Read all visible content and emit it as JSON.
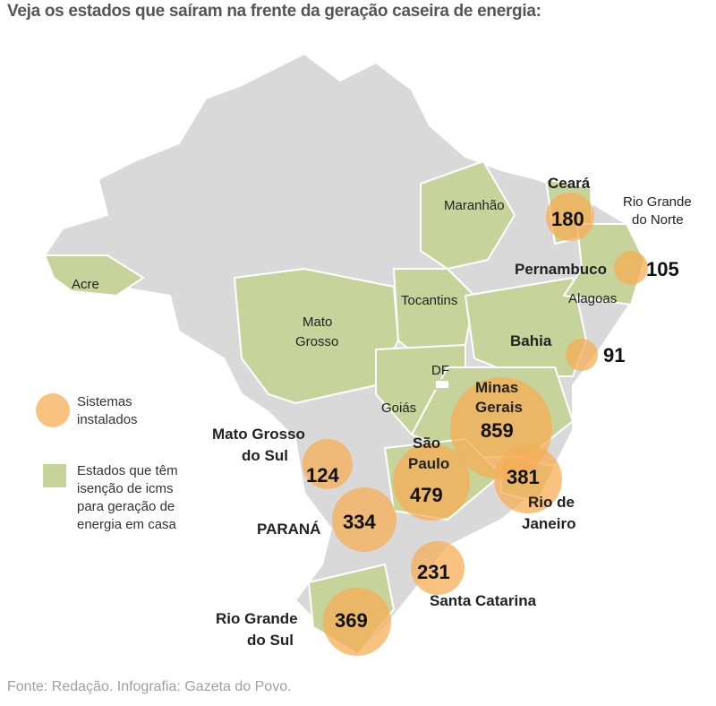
{
  "title": "Veja os estados que saíram na frente da geração caseira de energia:",
  "source": "Fonte: Redação. Infografia: Gazeta do Povo.",
  "colors": {
    "non_exempt_state": "#d9d9d9",
    "exempt_state": "#c6d49c",
    "bubble": "#f5ad55",
    "border": "#ffffff"
  },
  "legend": {
    "bubble_label": [
      "Sistemas",
      "instalados"
    ],
    "exempt_label": [
      "Estados que têm",
      "isenção de icms",
      "para geração de",
      "energia em casa"
    ]
  },
  "exempt_states": [
    "Acre",
    "Mato Grosso",
    "Maranhão",
    "Tocantins",
    "Goiás",
    "DF",
    "Bahia",
    "Minas Gerais",
    "São Paulo",
    "Rio de Janeiro",
    "Ceará",
    "Rio Grande do Norte",
    "Pernambuco",
    "Alagoas",
    "Rio Grande do Sul"
  ],
  "labels": {
    "acre": "Acre",
    "mato_grosso": [
      "Mato",
      "Grosso"
    ],
    "maranhao": "Maranhão",
    "tocantins": "Tocantins",
    "goias": "Goiás",
    "df": "DF",
    "alagoas": "Alagoas",
    "rgn": [
      "Rio Grande",
      "do Norte"
    ]
  },
  "installed_systems": [
    {
      "state": "Ceará",
      "label": [
        "Ceará"
      ],
      "value": "180"
    },
    {
      "state": "Pernambuco",
      "label": [
        "Pernambuco"
      ],
      "value": "105"
    },
    {
      "state": "Bahia",
      "label": [
        "Bahia"
      ],
      "value": "91"
    },
    {
      "state": "Minas Gerais",
      "label": [
        "Minas",
        "Gerais"
      ],
      "value": "859"
    },
    {
      "state": "Rio de Janeiro",
      "label": [
        "Rio de",
        "Janeiro"
      ],
      "value": "381"
    },
    {
      "state": "São Paulo",
      "label": [
        "São",
        "Paulo"
      ],
      "value": "479"
    },
    {
      "state": "Mato Grosso do Sul",
      "label": [
        "Mato Grosso",
        "do Sul"
      ],
      "value": "124"
    },
    {
      "state": "Paraná",
      "label": [
        "PARANÁ"
      ],
      "value": "334"
    },
    {
      "state": "Santa Catarina",
      "label": [
        "Santa Catarina"
      ],
      "value": "231"
    },
    {
      "state": "Rio Grande do Sul",
      "label": [
        "Rio Grande",
        "do Sul"
      ],
      "value": "369"
    }
  ]
}
